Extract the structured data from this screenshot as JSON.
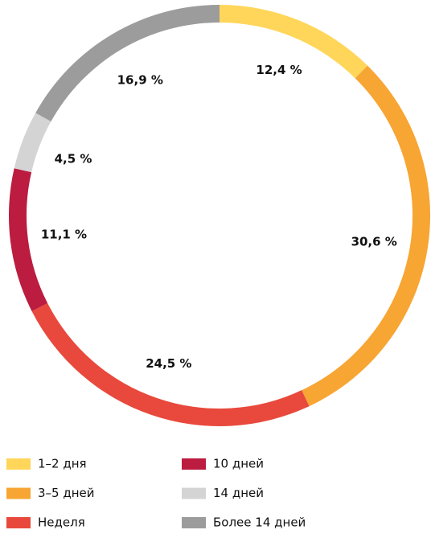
{
  "chart_data": {
    "type": "donut",
    "categories": [
      "1–2 дня",
      "3–5 дней",
      "Неделя",
      "10 дней",
      "14 дней",
      "Более 14 дней"
    ],
    "values": [
      12.4,
      30.6,
      24.5,
      11.1,
      4.5,
      16.9
    ],
    "value_labels": [
      "12,4 %",
      "30,6 %",
      "24,5 %",
      "11,1 %",
      "4,5 %",
      "16,9 %"
    ],
    "colors": [
      "#ffd65a",
      "#f7a533",
      "#e8493c",
      "#bb1c3f",
      "#d4d4d4",
      "#9c9c9c"
    ],
    "legend": "bottom"
  }
}
